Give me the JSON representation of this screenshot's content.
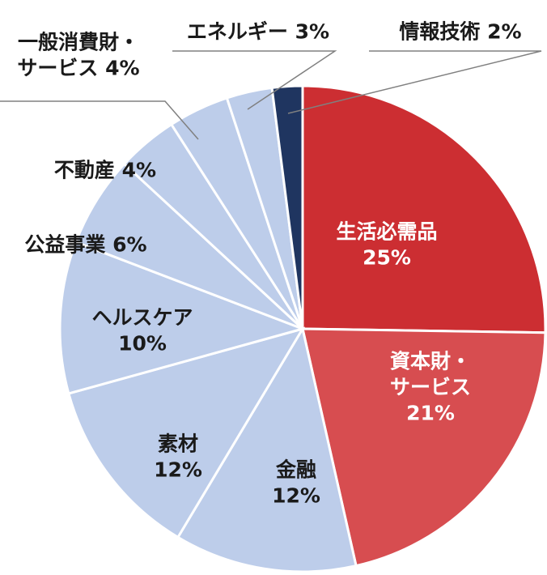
{
  "chart_data": {
    "type": "pie",
    "title": "",
    "slices": [
      {
        "lines": [
          "生活必需品",
          "25%"
        ],
        "value": 25,
        "color": "#cc2e32"
      },
      {
        "lines": [
          "資本財・",
          "サービス",
          "21%"
        ],
        "value": 21,
        "color": "#d74d50"
      },
      {
        "lines": [
          "金融",
          "12%"
        ],
        "value": 12,
        "color": "#bdcdea"
      },
      {
        "lines": [
          "素材",
          "12%"
        ],
        "value": 12,
        "color": "#bdcdea"
      },
      {
        "lines": [
          "ヘルスケア",
          "10%"
        ],
        "value": 10,
        "color": "#bdcdea"
      },
      {
        "lines": [
          "公益事業 6%"
        ],
        "value": 6,
        "color": "#bdcdea"
      },
      {
        "lines": [
          "不動産 4%"
        ],
        "value": 4,
        "color": "#bdcdea"
      },
      {
        "lines": [
          "一般消費財・",
          "サービス 4%"
        ],
        "value": 4,
        "color": "#bdcdea"
      },
      {
        "lines": [
          "エネルギー 3%"
        ],
        "value": 3,
        "color": "#bdcdea"
      },
      {
        "lines": [
          "情報技術 2%"
        ],
        "value": 2,
        "color": "#1f3560"
      }
    ]
  }
}
